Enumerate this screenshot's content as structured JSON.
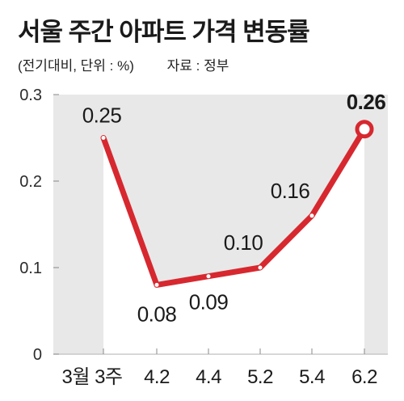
{
  "header": {
    "title": "서울 주간 아파트 가격 변동률",
    "unit_note": "(전기대비, 단위 : %)",
    "source": "자료 : 정부"
  },
  "colors": {
    "line": "#d7282f",
    "panel": "#e8e8e8",
    "area": "#ffffff",
    "marker": "#ffffff"
  },
  "chart_data": {
    "type": "area",
    "title": "서울 주간 아파트 가격 변동률",
    "subtitle": "(전기대비, 단위 : %)",
    "source": "자료 : 정부",
    "categories": [
      "3월 3주",
      "4.2",
      "4.4",
      "5.2",
      "5.4",
      "6.2"
    ],
    "series": [
      {
        "values": [
          0.25,
          0.08,
          0.09,
          0.1,
          0.16,
          0.26
        ]
      }
    ],
    "data_labels": [
      "0.25",
      "0.08",
      "0.09",
      "0.10",
      "0.16",
      "0.26"
    ],
    "y_ticks": [
      "0",
      "0.1",
      "0.2",
      "0.3"
    ],
    "ylim": [
      0,
      0.3
    ],
    "grid": false,
    "legend": "none"
  }
}
